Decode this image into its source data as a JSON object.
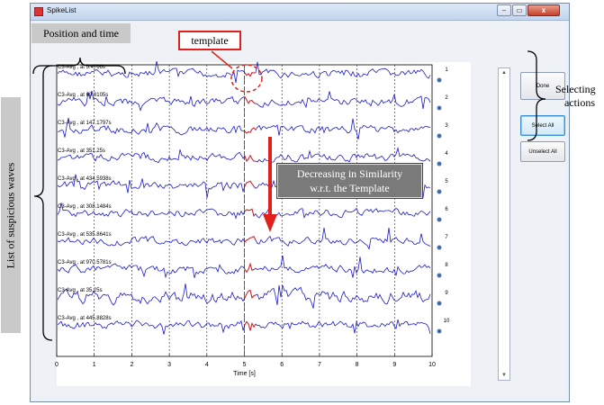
{
  "window": {
    "title": "SpikeList",
    "min_label": "–",
    "max_label": "▭",
    "close_label": "x"
  },
  "buttons": {
    "done": "Done",
    "select_all": "Select All",
    "unselect_all": "Unselect All"
  },
  "plot": {
    "xlabel": "Time [s]",
    "xticks": [
      "0",
      "1",
      "2",
      "3",
      "4",
      "5",
      "6",
      "7",
      "8",
      "9",
      "10"
    ],
    "template_marker_x": 5,
    "rows": [
      {
        "num": "1",
        "label": "C3-Avg , at 5.4766s"
      },
      {
        "num": "2",
        "label": "C3-Avg , at 60.8105s"
      },
      {
        "num": "3",
        "label": "C3-Avg , at 147.1797s"
      },
      {
        "num": "4",
        "label": "C3-Avg , at 351.25s"
      },
      {
        "num": "5",
        "label": "C3-Avg , at 434.5938s"
      },
      {
        "num": "6",
        "label": "C3-Avg , at 308.1484s"
      },
      {
        "num": "7",
        "label": "C3-Avg , at 535.8641s"
      },
      {
        "num": "8",
        "label": "C3-Avg , at 970.5781s"
      },
      {
        "num": "9",
        "label": "C3-Avg , at 35.25s"
      },
      {
        "num": "10",
        "label": "C3-Avg , at 445.8828s"
      }
    ]
  },
  "annotations": {
    "position_and_time": "Position and time",
    "template": "template",
    "decreasing_line1": "Decreasing in Similarity",
    "decreasing_line2": "w.r.t. the Template",
    "selecting_line1": "Selecting",
    "selecting_line2": "actions",
    "list_of_waves": "List of suspicious waves"
  },
  "colors": {
    "wave": "#1a1acc",
    "template_wave": "#e0201a",
    "callout_border": "#e0201a",
    "arrow": "#e0201a"
  }
}
